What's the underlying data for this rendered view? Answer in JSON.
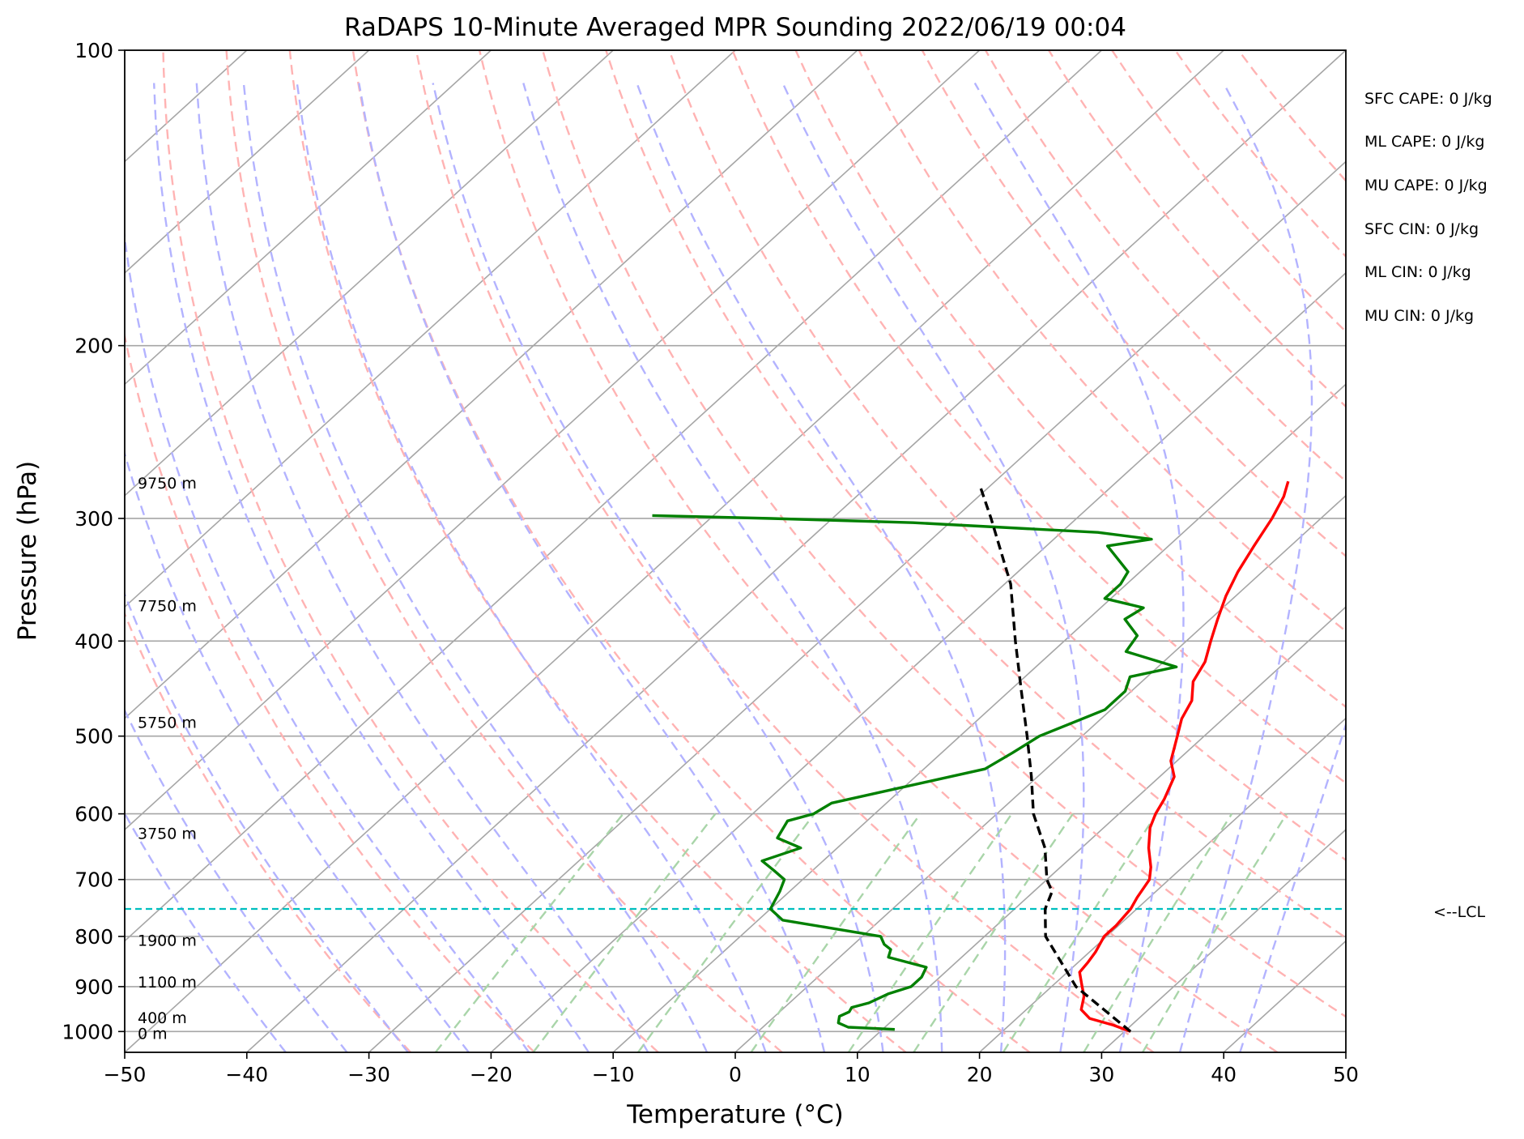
{
  "chart_data": {
    "type": "line",
    "title": "RaDAPS 10-Minute Averaged MPR Sounding 2022/06/19 00:04",
    "xlabel": "Temperature (°C)",
    "ylabel": "Pressure (hPa)",
    "xlim": [
      -50,
      50
    ],
    "ylim": [
      1050,
      100
    ],
    "y_scale": "log",
    "skew": true,
    "x_ticks": [
      "−50",
      "−40",
      "−30",
      "−20",
      "−10",
      "0",
      "10",
      "20",
      "30",
      "40",
      "50"
    ],
    "y_ticks": [
      100,
      200,
      300,
      400,
      500,
      600,
      700,
      800,
      900,
      1000
    ],
    "grid": true,
    "series": [
      {
        "color": "#ff0000",
        "kind": "temperature",
        "points": [
          [
            1000,
            30.5
          ],
          [
            985,
            28.5
          ],
          [
            970,
            26.0
          ],
          [
            950,
            24.5
          ],
          [
            920,
            23.5
          ],
          [
            900,
            22.5
          ],
          [
            870,
            21.0
          ],
          [
            850,
            20.8
          ],
          [
            830,
            20.5
          ],
          [
            800,
            19.8
          ],
          [
            780,
            19.8
          ],
          [
            750,
            19.5
          ],
          [
            730,
            19.0
          ],
          [
            700,
            18.4
          ],
          [
            680,
            17.4
          ],
          [
            650,
            15.5
          ],
          [
            620,
            13.8
          ],
          [
            600,
            13.0
          ],
          [
            580,
            12.4
          ],
          [
            550,
            11.2
          ],
          [
            530,
            9.5
          ],
          [
            500,
            7.8
          ],
          [
            480,
            6.6
          ],
          [
            460,
            5.8
          ],
          [
            440,
            4.2
          ],
          [
            420,
            3.4
          ],
          [
            400,
            2.0
          ],
          [
            380,
            0.6
          ],
          [
            360,
            -0.8
          ],
          [
            340,
            -2.0
          ],
          [
            320,
            -3.0
          ],
          [
            300,
            -4.0
          ],
          [
            285,
            -5.0
          ],
          [
            275,
            -6.0
          ]
        ]
      },
      {
        "color": "#008000",
        "kind": "dewpoint",
        "points": [
          [
            995,
            11.0
          ],
          [
            990,
            7.0
          ],
          [
            980,
            5.8
          ],
          [
            965,
            5.3
          ],
          [
            955,
            5.7
          ],
          [
            945,
            5.5
          ],
          [
            935,
            6.5
          ],
          [
            915,
            7.3
          ],
          [
            900,
            8.5
          ],
          [
            880,
            8.5
          ],
          [
            860,
            8.0
          ],
          [
            840,
            4.0
          ],
          [
            825,
            3.5
          ],
          [
            815,
            2.5
          ],
          [
            800,
            1.5
          ],
          [
            770,
            -8.0
          ],
          [
            750,
            -10.0
          ],
          [
            720,
            -10.8
          ],
          [
            700,
            -11.5
          ],
          [
            685,
            -13.2
          ],
          [
            670,
            -15.0
          ],
          [
            650,
            -13.0
          ],
          [
            635,
            -15.8
          ],
          [
            610,
            -16.5
          ],
          [
            600,
            -15.0
          ],
          [
            585,
            -14.5
          ],
          [
            540,
            -5.0
          ],
          [
            520,
            -4.2
          ],
          [
            500,
            -3.5
          ],
          [
            470,
            -0.5
          ],
          [
            450,
            -0.5
          ],
          [
            435,
            -1.4
          ],
          [
            425,
            1.5
          ],
          [
            410,
            -4.0
          ],
          [
            395,
            -4.5
          ],
          [
            380,
            -7.0
          ],
          [
            370,
            -6.5
          ],
          [
            362,
            -10.5
          ],
          [
            350,
            -10.5
          ],
          [
            340,
            -11.0
          ],
          [
            320,
            -15.0
          ],
          [
            315,
            -12.0
          ],
          [
            310,
            -17.0
          ],
          [
            303,
            -33.0
          ],
          [
            300,
            -45.0
          ],
          [
            298,
            -55.0
          ]
        ]
      },
      {
        "color": "#000000",
        "kind": "parcel",
        "points": [
          [
            1000,
            30.5
          ],
          [
            900,
            22.0
          ],
          [
            800,
            15.0
          ],
          [
            750,
            12.5
          ],
          [
            720,
            11.5
          ],
          [
            700,
            10.0
          ],
          [
            650,
            7.0
          ],
          [
            600,
            3.0
          ],
          [
            550,
            -0.5
          ],
          [
            500,
            -4.5
          ],
          [
            450,
            -9.0
          ],
          [
            400,
            -14.0
          ],
          [
            350,
            -19.5
          ],
          [
            300,
            -27.0
          ],
          [
            277,
            -31.0
          ]
        ]
      }
    ],
    "lcl_hpa": 750,
    "lcl_label": "<--LCL",
    "height_labels": [
      {
        "hpa": 276,
        "text": "9750 m"
      },
      {
        "hpa": 368,
        "text": "7750 m"
      },
      {
        "hpa": 484,
        "text": "5750 m"
      },
      {
        "hpa": 628,
        "text": "3750 m"
      },
      {
        "hpa": 807,
        "text": "1900 m"
      },
      {
        "hpa": 890,
        "text": "1100 m"
      },
      {
        "hpa": 968,
        "text": "400 m"
      },
      {
        "hpa": 1004,
        "text": "0 m"
      }
    ],
    "guide_colors": {
      "isotherm": "#a6a6a6",
      "dry_adiabat": "#ffb3b3",
      "moist_adiabat": "#b3b3ff",
      "mixing_ratio": "#a9d5a9",
      "lcl": "#00bfbf"
    }
  },
  "stats": [
    "SFC CAPE: 0 J/kg",
    "ML CAPE: 0 J/kg",
    "MU CAPE: 0 J/kg",
    "SFC CIN: 0 J/kg",
    "ML CIN: 0 J/kg",
    "MU CIN: 0 J/kg"
  ]
}
